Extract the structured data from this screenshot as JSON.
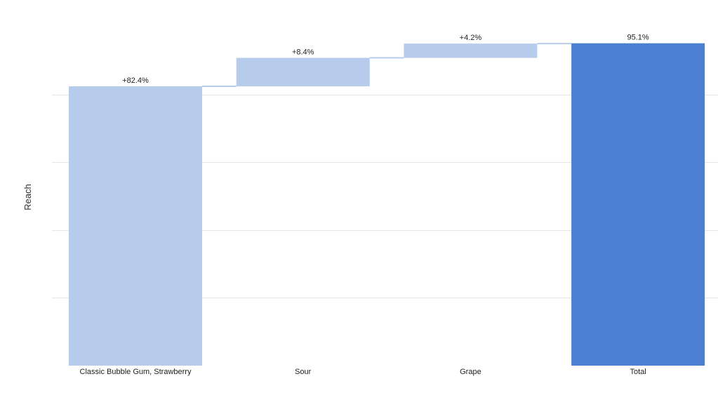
{
  "chart_data": {
    "type": "bar",
    "subtype": "waterfall",
    "title": "",
    "xlabel": "",
    "ylabel": "Reach",
    "categories": [
      "Classic Bubble Gum, Strawberry",
      "Sour",
      "Grape",
      "Total"
    ],
    "values": [
      82.4,
      8.4,
      4.2,
      95.1
    ],
    "value_labels": [
      "+82.4%",
      "+8.4%",
      "+4.2%",
      "95.1%"
    ],
    "bar_kinds": [
      "increment",
      "increment",
      "increment",
      "total"
    ],
    "ylim": [
      0,
      100
    ],
    "y_ticks": [
      0,
      20,
      40,
      60,
      80
    ],
    "grid": true,
    "show_y_tick_labels": false,
    "legend": "none",
    "colors": {
      "increment": "#b7cbec",
      "total": "#4a7fd1",
      "connector": "#b7cbec",
      "grid": "#e6e6e6"
    }
  }
}
